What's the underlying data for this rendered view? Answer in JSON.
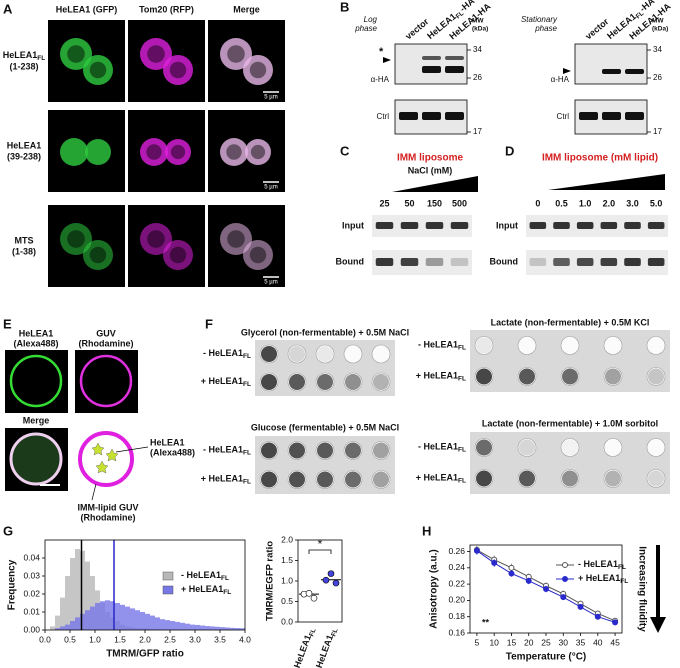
{
  "panel_letters": [
    "A",
    "B",
    "C",
    "D",
    "E",
    "F",
    "G",
    "H"
  ],
  "A": {
    "columns": [
      "HeLEA1 (GFP)",
      "Tom20 (RFP)",
      "Merge"
    ],
    "rows": [
      {
        "name": "HeLEA1",
        "sub": "FL",
        "range": "(1-238)"
      },
      {
        "name": "HeLEA1",
        "range": "(39-238)"
      },
      {
        "name": "MTS",
        "range": "(1-38)"
      }
    ],
    "scale_bar": "5 µm"
  },
  "B": {
    "phases": [
      [
        "Log",
        "phase"
      ],
      [
        "Stationary",
        "phase"
      ]
    ],
    "lanes": [
      {
        "name": "vector"
      },
      {
        "name": "HeLEA1",
        "sub": "FL",
        "tail": "-HA"
      },
      {
        "name": "HeLEA1-HA"
      }
    ],
    "mw": [
      "MW",
      "(kDa)"
    ],
    "markers": [
      "34",
      "26",
      "17"
    ],
    "star": "*",
    "antibody": "α-HA",
    "control": "Ctrl"
  },
  "C": {
    "title": "IMM liposome",
    "subtitle": "NaCl (mM)",
    "lanes": [
      "25",
      "50",
      "150",
      "500"
    ],
    "rows": [
      "Input",
      "Bound"
    ]
  },
  "D": {
    "title": "IMM liposome (mM lipid)",
    "lanes": [
      "0",
      "0.5",
      "1.0",
      "2.0",
      "3.0",
      "5.0"
    ],
    "rows": [
      "Input",
      "Bound"
    ]
  },
  "E": {
    "col1": [
      "HeLEA1",
      "(Alexa488)"
    ],
    "col2": [
      "GUV",
      "(Rhodamine)"
    ],
    "merge": "Merge",
    "diagram_protein": [
      "HeLEA1",
      "(Alexa488)"
    ],
    "diagram_guv": [
      "IMM-lipid GUV",
      "(Rhodamine)"
    ]
  },
  "F": {
    "plates": [
      "Glycerol (non-fermentable) + 0.5M NaCl",
      "Lactate (non-fermentable) + 0.5M KCl",
      "Glucose (fermentable) + 0.5M NaCl",
      "Lactate (non-fermentable) + 1.0M sorbitol"
    ],
    "rows": [
      {
        "name": "- HeLEA1",
        "sub": "FL"
      },
      {
        "name": "+ HeLEA1",
        "sub": "FL"
      }
    ]
  },
  "chart_data": [
    {
      "type": "histogram",
      "xlabel": "TMRM/GFP ratio",
      "ylabel": "Frequency",
      "bins": [
        0,
        0.1,
        0.2,
        0.3,
        0.4,
        0.5,
        0.6,
        0.7,
        0.8,
        0.9,
        1.0,
        1.1,
        1.2,
        1.3,
        1.4,
        1.5,
        1.6,
        1.7,
        1.8,
        1.9,
        2.0,
        2.1,
        2.2,
        2.3,
        2.4,
        2.5,
        2.6,
        2.7,
        2.8,
        2.9,
        3.0,
        3.1,
        3.2,
        3.3,
        3.4,
        3.5,
        3.6,
        3.7,
        3.8,
        3.9,
        4.0
      ],
      "series": [
        {
          "name": "- HeLEA1",
          "name_sub": "FL",
          "color": "#b8b8b8",
          "values": [
            0,
            0.002,
            0.008,
            0.018,
            0.03,
            0.04,
            0.045,
            0.044,
            0.038,
            0.03,
            0.022,
            0.015,
            0.01,
            0.007,
            0.005,
            0.003,
            0.002,
            0.0015,
            0.001,
            0.001,
            0.0008,
            0.0006,
            0.0005,
            0.0004,
            0.0003,
            0.0003,
            0.0002,
            0.0002,
            0.0001,
            0.0001,
            0,
            0,
            0,
            0,
            0,
            0,
            0,
            0,
            0,
            0
          ]
        },
        {
          "name": "+ HeLEA1",
          "name_sub": "FL",
          "color": "#7777e8",
          "values": [
            0,
            0,
            0.001,
            0.002,
            0.003,
            0.005,
            0.007,
            0.009,
            0.011,
            0.013,
            0.015,
            0.016,
            0.0165,
            0.016,
            0.015,
            0.014,
            0.013,
            0.012,
            0.011,
            0.01,
            0.009,
            0.008,
            0.007,
            0.006,
            0.0055,
            0.005,
            0.0045,
            0.004,
            0.0035,
            0.003,
            0.0028,
            0.0025,
            0.0022,
            0.002,
            0.0018,
            0.0016,
            0.0014,
            0.0012,
            0.0011,
            0.001
          ]
        }
      ],
      "vlines": [
        {
          "value": 0.73,
          "color": "#000000"
        },
        {
          "value": 1.38,
          "color": "#2828c8"
        }
      ],
      "xlim": [
        0,
        4
      ],
      "xticks": [
        {
          "value": 0,
          "label": "0.0"
        },
        0.5,
        {
          "value": 1,
          "label": "1.0"
        },
        1.5,
        {
          "value": 2,
          "label": "2.0"
        },
        2.5,
        {
          "value": 3,
          "label": "3.0"
        },
        3.5,
        {
          "value": 4,
          "label": "4.0"
        }
      ],
      "ylim": [
        0,
        0.05
      ],
      "yticks": [
        {
          "value": 0,
          "label": "0.00"
        },
        0.01,
        0.02,
        0.03,
        0.04
      ]
    },
    {
      "type": "dot",
      "ylabel": "TMRM/EGFP ratio",
      "categories": [
        "-HeLEA1",
        "+HeLEA1"
      ],
      "category_sub": "FL",
      "points": [
        [
          0.68,
          0.7,
          0.58
        ],
        [
          1.02,
          1.18,
          0.95
        ]
      ],
      "medians": [
        0.68,
        1.03
      ],
      "colors": [
        "#ffffff",
        "#4444dd"
      ],
      "annotation": "*",
      "ylim": [
        0,
        2
      ],
      "yticks": [
        {
          "value": 0,
          "label": "0.0"
        },
        0.5,
        {
          "value": 1,
          "label": "1.0"
        },
        1.5,
        {
          "value": 2,
          "label": "2.0"
        }
      ]
    },
    {
      "type": "line",
      "xlabel": "Temperature (°C)",
      "ylabel": "Anisotropy (a.u.)",
      "annotation": "**",
      "arrow_label": "Increasing fluidity",
      "x": [
        5,
        10,
        15,
        20,
        25,
        30,
        35,
        40,
        45
      ],
      "series": [
        {
          "name": "- HeLEA1",
          "name_sub": "FL",
          "color": "#555555",
          "marker": "open",
          "values": [
            0.262,
            0.25,
            0.24,
            0.229,
            0.218,
            0.208,
            0.196,
            0.184,
            0.175
          ],
          "errors": [
            0.005,
            0.005,
            0.005,
            0.004,
            0.004,
            0.004,
            0.003,
            0.003,
            0.002
          ]
        },
        {
          "name": "+ HeLEA1",
          "name_sub": "FL",
          "color": "#2a2acc",
          "marker": "filled",
          "values": [
            0.261,
            0.246,
            0.233,
            0.224,
            0.214,
            0.204,
            0.192,
            0.18,
            0.173
          ],
          "errors": [
            0.005,
            0.005,
            0.004,
            0.004,
            0.004,
            0.003,
            0.003,
            0.003,
            0.002
          ]
        }
      ],
      "xlim": [
        3,
        47
      ],
      "xticks": [
        5,
        10,
        15,
        20,
        25,
        30,
        35,
        40,
        45
      ],
      "ylim": [
        0.16,
        0.268
      ],
      "yticks": [
        0.16,
        0.18,
        {
          "value": 0.2,
          "label": "0.20"
        },
        0.22,
        0.24,
        0.26
      ]
    }
  ]
}
